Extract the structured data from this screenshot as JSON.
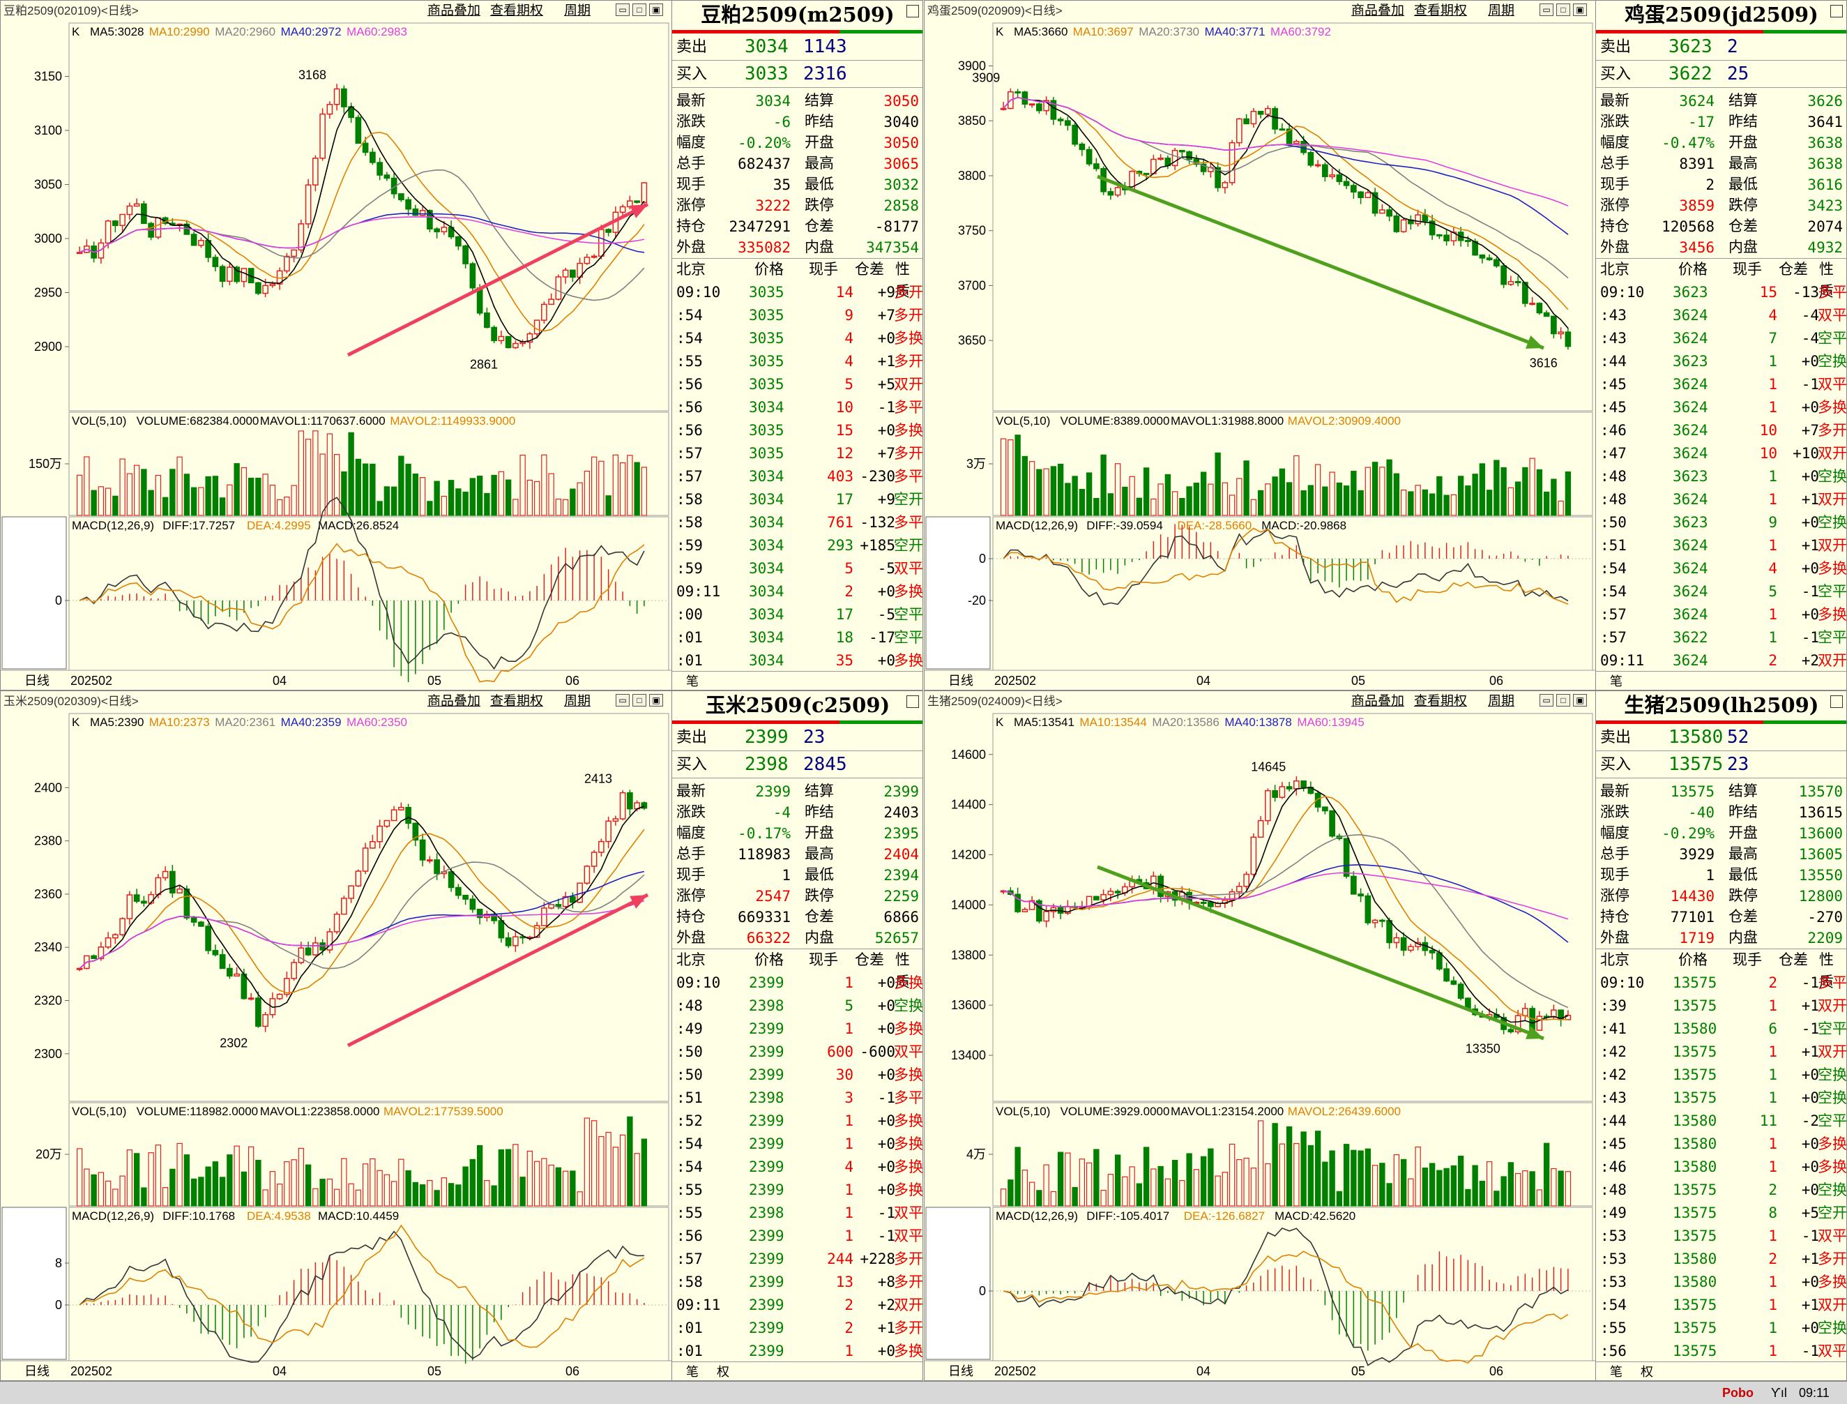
{
  "panels": [
    {
      "id": "m2509",
      "code_title": "豆粕2509(020109)<日线>",
      "quote_title": "豆粕2509(m2509)",
      "indicator_k": "K",
      "ma": [
        {
          "label": "MA5:3028",
          "color": "#000000"
        },
        {
          "label": "MA10:2990",
          "color": "#e08000"
        },
        {
          "label": "MA20:2960",
          "color": "#808080"
        },
        {
          "label": "MA40:2972",
          "color": "#2020c0"
        },
        {
          "label": "MA60:2983",
          "color": "#e040e0"
        }
      ],
      "price_ticks": [
        "3150",
        "3100",
        "3050",
        "3000",
        "2950",
        "2900"
      ],
      "price_range": [
        2860,
        3180
      ],
      "high_label": "3168",
      "low_label": "2861",
      "arrow": {
        "color": "#f04060",
        "dir": "up"
      },
      "vol_line": {
        "a": "VOL(5,10)",
        "b": "VOLUME:682384.0000",
        "c": "MAVOL1:1170637.6000",
        "d": "MAVOL2:1149933.9000"
      },
      "vol_tick": "150万",
      "macd_line": {
        "a": "MACD(12,26,9)",
        "b": "DIFF:17.7257",
        "c": "DEA:4.2995",
        "d": "MACD:26.8524"
      },
      "macd_ticks": [
        "0"
      ],
      "x_ticks": [
        "日线",
        "202502",
        "04",
        "05",
        "06"
      ],
      "sell": {
        "label": "卖出",
        "price": "3034",
        "vol": "1143"
      },
      "buy": {
        "label": "买入",
        "price": "3033",
        "vol": "2316"
      },
      "stats": [
        [
          "最新",
          "3034",
          "结算",
          "3050"
        ],
        [
          "涨跌",
          "-6",
          "昨结",
          "3040"
        ],
        [
          "幅度",
          "-0.20%",
          "开盘",
          "3050"
        ],
        [
          "总手",
          "682437",
          "最高",
          "3065"
        ],
        [
          "现手",
          "35",
          "最低",
          "3032"
        ],
        [
          "涨停",
          "3222",
          "跌停",
          "2858"
        ],
        [
          "持仓",
          "2347291",
          "仓差",
          "-8177"
        ],
        [
          "外盘",
          "335082",
          "内盘",
          "347354"
        ]
      ],
      "stat_colors": [
        [
          "g",
          "r"
        ],
        [
          "g",
          "k"
        ],
        [
          "g",
          "r"
        ],
        [
          "k",
          "r"
        ],
        [
          "k",
          "g"
        ],
        [
          "r",
          "g"
        ],
        [
          "k",
          "k"
        ],
        [
          "r",
          "g"
        ]
      ],
      "head": [
        "北京",
        "价格",
        "现手",
        "仓差",
        "性质"
      ],
      "ticks": [
        [
          "09:10",
          "3035",
          "14",
          "+9",
          "多开"
        ],
        [
          ":54",
          "3035",
          "9",
          "+7",
          "多开"
        ],
        [
          ":54",
          "3035",
          "4",
          "+0",
          "多换"
        ],
        [
          ":55",
          "3035",
          "4",
          "+1",
          "多开"
        ],
        [
          ":56",
          "3035",
          "5",
          "+5",
          "双开"
        ],
        [
          ":56",
          "3034",
          "10",
          "-1",
          "多平"
        ],
        [
          ":56",
          "3035",
          "15",
          "+0",
          "多换"
        ],
        [
          ":57",
          "3035",
          "12",
          "+7",
          "多开"
        ],
        [
          ":57",
          "3034",
          "403",
          "-230",
          "多平"
        ],
        [
          ":58",
          "3034",
          "17",
          "+9",
          "空开"
        ],
        [
          ":58",
          "3034",
          "761",
          "-132",
          "多平"
        ],
        [
          ":59",
          "3034",
          "293",
          "+185",
          "空开"
        ],
        [
          ":59",
          "3034",
          "5",
          "-5",
          "双平"
        ],
        [
          "09:11",
          "3034",
          "2",
          "+0",
          "多换"
        ],
        [
          ":00",
          "3034",
          "17",
          "-5",
          "空平"
        ],
        [
          ":01",
          "3034",
          "18",
          "-17",
          "空平"
        ],
        [
          ":01",
          "3034",
          "35",
          "+0",
          "多换"
        ]
      ],
      "foot": [
        "笔"
      ]
    },
    {
      "id": "jd2509",
      "code_title": "鸡蛋2509(020909)<日线>",
      "quote_title": "鸡蛋2509(jd2509)",
      "indicator_k": "K",
      "ma": [
        {
          "label": "MA5:3660",
          "color": "#000000"
        },
        {
          "label": "MA10:3697",
          "color": "#e08000"
        },
        {
          "label": "MA20:3730",
          "color": "#808080"
        },
        {
          "label": "MA40:3771",
          "color": "#2020c0"
        },
        {
          "label": "MA60:3792",
          "color": "#e040e0"
        }
      ],
      "price_ticks": [
        "3900",
        "3850",
        "3800",
        "3750",
        "3700",
        "3650"
      ],
      "price_range": [
        3605,
        3920
      ],
      "high_label": "3909",
      "low_label": "3616",
      "arrow": {
        "color": "#50a020",
        "dir": "down"
      },
      "vol_line": {
        "a": "VOL(5,10)",
        "b": "VOLUME:8389.0000",
        "c": "MAVOL1:31988.8000",
        "d": "MAVOL2:30909.4000"
      },
      "vol_tick": "3万",
      "macd_line": {
        "a": "MACD(12,26,9)",
        "b": "DIFF:-39.0594",
        "c": "DEA:-28.5660",
        "d": "MACD:-20.9868"
      },
      "macd_ticks": [
        "0",
        "-20"
      ],
      "x_ticks": [
        "日线",
        "202502",
        "04",
        "05",
        "06"
      ],
      "sell": {
        "label": "卖出",
        "price": "3623",
        "vol": "2"
      },
      "buy": {
        "label": "买入",
        "price": "3622",
        "vol": "25"
      },
      "stats": [
        [
          "最新",
          "3624",
          "结算",
          "3626"
        ],
        [
          "涨跌",
          "-17",
          "昨结",
          "3641"
        ],
        [
          "幅度",
          "-0.47%",
          "开盘",
          "3638"
        ],
        [
          "总手",
          "8391",
          "最高",
          "3638"
        ],
        [
          "现手",
          "2",
          "最低",
          "3616"
        ],
        [
          "涨停",
          "3859",
          "跌停",
          "3423"
        ],
        [
          "持仓",
          "120568",
          "仓差",
          "2074"
        ],
        [
          "外盘",
          "3456",
          "内盘",
          "4932"
        ]
      ],
      "stat_colors": [
        [
          "g",
          "g"
        ],
        [
          "g",
          "k"
        ],
        [
          "g",
          "g"
        ],
        [
          "k",
          "g"
        ],
        [
          "k",
          "g"
        ],
        [
          "r",
          "g"
        ],
        [
          "k",
          "k"
        ],
        [
          "r",
          "g"
        ]
      ],
      "head": [
        "北京",
        "价格",
        "现手",
        "仓差",
        "性质"
      ],
      "ticks": [
        [
          "09:10",
          "3623",
          "15",
          "-13",
          "多平"
        ],
        [
          ":43",
          "3624",
          "4",
          "-4",
          "双平"
        ],
        [
          ":43",
          "3624",
          "7",
          "-4",
          "空平"
        ],
        [
          ":44",
          "3623",
          "1",
          "+0",
          "空换"
        ],
        [
          ":45",
          "3624",
          "1",
          "-1",
          "双平"
        ],
        [
          ":45",
          "3624",
          "1",
          "+0",
          "多换"
        ],
        [
          ":46",
          "3624",
          "10",
          "+7",
          "多开"
        ],
        [
          ":47",
          "3624",
          "10",
          "+10",
          "双开"
        ],
        [
          ":48",
          "3623",
          "1",
          "+0",
          "空换"
        ],
        [
          ":48",
          "3624",
          "1",
          "+1",
          "双开"
        ],
        [
          ":50",
          "3623",
          "9",
          "+0",
          "空换"
        ],
        [
          ":51",
          "3624",
          "1",
          "+1",
          "双开"
        ],
        [
          ":54",
          "3624",
          "4",
          "+0",
          "多换"
        ],
        [
          ":54",
          "3624",
          "5",
          "-1",
          "空平"
        ],
        [
          ":57",
          "3624",
          "1",
          "+0",
          "多换"
        ],
        [
          ":57",
          "3622",
          "1",
          "-1",
          "空平"
        ],
        [
          "09:11",
          "3624",
          "2",
          "+2",
          "双开"
        ]
      ],
      "foot": [
        "笔"
      ]
    },
    {
      "id": "c2509",
      "code_title": "玉米2509(020309)<日线>",
      "quote_title": "玉米2509(c2509)",
      "indicator_k": "K",
      "ma": [
        {
          "label": "MA5:2390",
          "color": "#000000"
        },
        {
          "label": "MA10:2373",
          "color": "#e08000"
        },
        {
          "label": "MA20:2361",
          "color": "#808080"
        },
        {
          "label": "MA40:2359",
          "color": "#2020c0"
        },
        {
          "label": "MA60:2350",
          "color": "#e040e0"
        }
      ],
      "price_ticks": [
        "2400",
        "2380",
        "2360",
        "2340",
        "2320",
        "2300"
      ],
      "price_range": [
        2290,
        2420
      ],
      "high_label": "2413",
      "low_label": "2302",
      "arrow": {
        "color": "#f04060",
        "dir": "up"
      },
      "vol_line": {
        "a": "VOL(5,10)",
        "b": "VOLUME:118982.0000",
        "c": "MAVOL1:223858.0000",
        "d": "MAVOL2:177539.5000"
      },
      "vol_tick": "20万",
      "macd_line": {
        "a": "MACD(12,26,9)",
        "b": "DIFF:10.1768",
        "c": "DEA:4.9538",
        "d": "MACD:10.4459"
      },
      "macd_ticks": [
        "8",
        "0"
      ],
      "x_ticks": [
        "日线",
        "202502",
        "04",
        "05",
        "06"
      ],
      "sell": {
        "label": "卖出",
        "price": "2399",
        "vol": "23"
      },
      "buy": {
        "label": "买入",
        "price": "2398",
        "vol": "2845"
      },
      "stats": [
        [
          "最新",
          "2399",
          "结算",
          "2399"
        ],
        [
          "涨跌",
          "-4",
          "昨结",
          "2403"
        ],
        [
          "幅度",
          "-0.17%",
          "开盘",
          "2395"
        ],
        [
          "总手",
          "118983",
          "最高",
          "2404"
        ],
        [
          "现手",
          "1",
          "最低",
          "2394"
        ],
        [
          "涨停",
          "2547",
          "跌停",
          "2259"
        ],
        [
          "持仓",
          "669331",
          "仓差",
          "6866"
        ],
        [
          "外盘",
          "66322",
          "内盘",
          "52657"
        ]
      ],
      "stat_colors": [
        [
          "g",
          "g"
        ],
        [
          "g",
          "k"
        ],
        [
          "g",
          "g"
        ],
        [
          "k",
          "r"
        ],
        [
          "k",
          "g"
        ],
        [
          "r",
          "g"
        ],
        [
          "k",
          "k"
        ],
        [
          "r",
          "g"
        ]
      ],
      "head": [
        "北京",
        "价格",
        "现手",
        "仓差",
        "性质"
      ],
      "ticks": [
        [
          "09:10",
          "2399",
          "1",
          "+0",
          "多换"
        ],
        [
          ":48",
          "2398",
          "5",
          "+0",
          "空换"
        ],
        [
          ":49",
          "2399",
          "1",
          "+0",
          "多换"
        ],
        [
          ":50",
          "2399",
          "600",
          "-600",
          "双平"
        ],
        [
          ":50",
          "2399",
          "30",
          "+0",
          "多换"
        ],
        [
          ":51",
          "2398",
          "3",
          "-1",
          "多平"
        ],
        [
          ":52",
          "2399",
          "1",
          "+0",
          "多换"
        ],
        [
          ":54",
          "2399",
          "1",
          "+0",
          "多换"
        ],
        [
          ":54",
          "2399",
          "4",
          "+0",
          "多换"
        ],
        [
          ":55",
          "2399",
          "1",
          "+0",
          "多换"
        ],
        [
          ":55",
          "2398",
          "1",
          "-1",
          "双平"
        ],
        [
          ":56",
          "2399",
          "1",
          "-1",
          "双平"
        ],
        [
          ":57",
          "2399",
          "244",
          "+228",
          "多开"
        ],
        [
          ":58",
          "2399",
          "13",
          "+8",
          "多开"
        ],
        [
          "09:11",
          "2399",
          "2",
          "+2",
          "双开"
        ],
        [
          ":01",
          "2399",
          "2",
          "+1",
          "多开"
        ],
        [
          ":01",
          "2399",
          "1",
          "+0",
          "多换"
        ]
      ],
      "foot": [
        "笔",
        "权"
      ]
    },
    {
      "id": "lh2509",
      "code_title": "生猪2509(024009)<日线>",
      "quote_title": "生猪2509(lh2509)",
      "indicator_k": "K",
      "ma": [
        {
          "label": "MA5:13541",
          "color": "#000000"
        },
        {
          "label": "MA10:13544",
          "color": "#e08000"
        },
        {
          "label": "MA20:13586",
          "color": "#808080"
        },
        {
          "label": "MA40:13878",
          "color": "#2020c0"
        },
        {
          "label": "MA60:13945",
          "color": "#e040e0"
        }
      ],
      "price_ticks": [
        "14600",
        "14400",
        "14200",
        "14000",
        "13800",
        "13600",
        "13400"
      ],
      "price_range": [
        13300,
        14680
      ],
      "high_label": "14645",
      "low_label": "13350",
      "arrow": {
        "color": "#50a020",
        "dir": "down"
      },
      "vol_line": {
        "a": "VOL(5,10)",
        "b": "VOLUME:3929.0000",
        "c": "MAVOL1:23154.2000",
        "d": "MAVOL2:26439.6000"
      },
      "vol_tick": "4万",
      "macd_line": {
        "a": "MACD(12,26,9)",
        "b": "DIFF:-105.4017",
        "c": "DEA:-126.6827",
        "d": "MACD:42.5620"
      },
      "macd_ticks": [
        "0"
      ],
      "x_ticks": [
        "日线",
        "202502",
        "04",
        "05",
        "06"
      ],
      "sell": {
        "label": "卖出",
        "price": "13580",
        "vol": "52"
      },
      "buy": {
        "label": "买入",
        "price": "13575",
        "vol": "23"
      },
      "stats": [
        [
          "最新",
          "13575",
          "结算",
          "13570"
        ],
        [
          "涨跌",
          "-40",
          "昨结",
          "13615"
        ],
        [
          "幅度",
          "-0.29%",
          "开盘",
          "13600"
        ],
        [
          "总手",
          "3929",
          "最高",
          "13605"
        ],
        [
          "现手",
          "1",
          "最低",
          "13550"
        ],
        [
          "涨停",
          "14430",
          "跌停",
          "12800"
        ],
        [
          "持仓",
          "77101",
          "仓差",
          "-270"
        ],
        [
          "外盘",
          "1719",
          "内盘",
          "2209"
        ]
      ],
      "stat_colors": [
        [
          "g",
          "g"
        ],
        [
          "g",
          "k"
        ],
        [
          "g",
          "g"
        ],
        [
          "k",
          "g"
        ],
        [
          "k",
          "g"
        ],
        [
          "r",
          "g"
        ],
        [
          "k",
          "k"
        ],
        [
          "r",
          "g"
        ]
      ],
      "head": [
        "北京",
        "价格",
        "现手",
        "仓差",
        "性质"
      ],
      "ticks": [
        [
          "09:10",
          "13575",
          "2",
          "-1",
          "多平"
        ],
        [
          ":39",
          "13575",
          "1",
          "+1",
          "双开"
        ],
        [
          ":41",
          "13580",
          "6",
          "-1",
          "空平"
        ],
        [
          ":42",
          "13575",
          "1",
          "+1",
          "双开"
        ],
        [
          ":42",
          "13575",
          "1",
          "+0",
          "空换"
        ],
        [
          ":43",
          "13575",
          "1",
          "+0",
          "空换"
        ],
        [
          ":44",
          "13580",
          "11",
          "-2",
          "空平"
        ],
        [
          ":45",
          "13580",
          "1",
          "+0",
          "多换"
        ],
        [
          ":46",
          "13580",
          "1",
          "+0",
          "多换"
        ],
        [
          ":48",
          "13575",
          "2",
          "+0",
          "空换"
        ],
        [
          ":49",
          "13575",
          "8",
          "+5",
          "空开"
        ],
        [
          ":53",
          "13575",
          "1",
          "-1",
          "双平"
        ],
        [
          ":53",
          "13580",
          "2",
          "+1",
          "多开"
        ],
        [
          ":53",
          "13580",
          "1",
          "+0",
          "多换"
        ],
        [
          ":54",
          "13575",
          "1",
          "+1",
          "双开"
        ],
        [
          ":55",
          "13575",
          "1",
          "+0",
          "空换"
        ],
        [
          ":56",
          "13575",
          "1",
          "-1",
          "双平"
        ]
      ],
      "foot": [
        "笔",
        "权"
      ]
    }
  ],
  "toolbar": {
    "btn1": "商品叠加",
    "btn2": "查看期权",
    "btn3": "周期"
  },
  "status": {
    "brand": "Pobo",
    "signal": "Ƴıl",
    "time": "09:11"
  }
}
